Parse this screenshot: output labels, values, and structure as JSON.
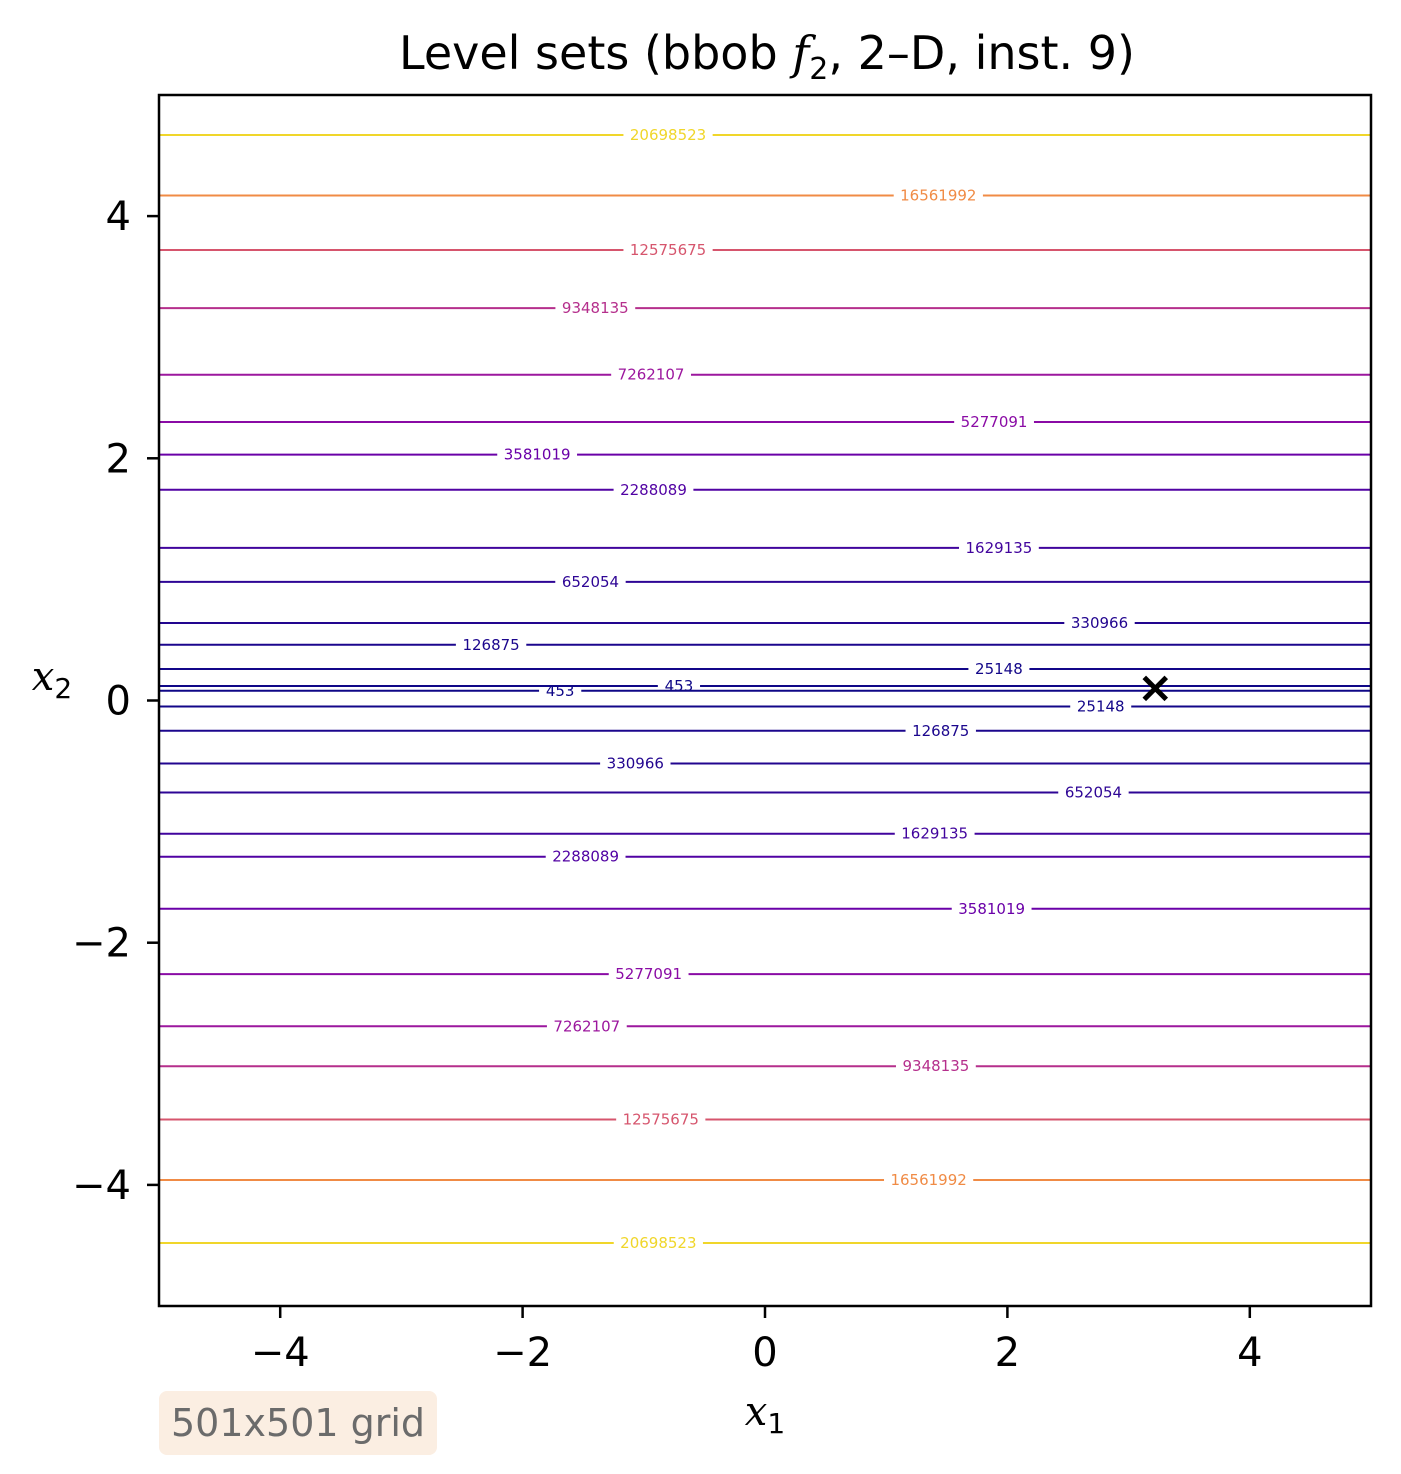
{
  "chart_data": {
    "type": "contour",
    "title": "Level sets (bbob f₂, 2–D, inst. 9)",
    "title_parts": {
      "pre": "Level sets (bbob ",
      "f": "f",
      "sub": "2",
      "post": ", 2–D, inst. 9)"
    },
    "xlabel": {
      "base": "x",
      "sub": "1"
    },
    "ylabel": {
      "base": "x",
      "sub": "2"
    },
    "xlim": [
      -5,
      5
    ],
    "ylim": [
      -5,
      5
    ],
    "xticks": [
      -4,
      -2,
      0,
      2,
      4
    ],
    "yticks": [
      -4,
      -2,
      0,
      2,
      4
    ],
    "xtick_labels": [
      "−4",
      "−2",
      "0",
      "2",
      "4"
    ],
    "ytick_labels": [
      "−4",
      "−2",
      "0",
      "2",
      "4"
    ],
    "grid": false,
    "colormap": "plasma",
    "levels": [
      {
        "value": "20698523",
        "y": 4.67,
        "label_x": -0.8,
        "color": "#f0d62a"
      },
      {
        "value": "16561992",
        "y": 4.17,
        "label_x": 1.43,
        "color": "#f08b45"
      },
      {
        "value": "12575675",
        "y": 3.72,
        "label_x": -0.8,
        "color": "#d6556d"
      },
      {
        "value": "9348135",
        "y": 3.24,
        "label_x": -1.4,
        "color": "#b52f8c"
      },
      {
        "value": "7262107",
        "y": 2.69,
        "label_x": -0.94,
        "color": "#9c179e"
      },
      {
        "value": "5277091",
        "y": 2.3,
        "label_x": 1.89,
        "color": "#8a0ba5"
      },
      {
        "value": "3581019",
        "y": 2.03,
        "label_x": -1.88,
        "color": "#6a00a8"
      },
      {
        "value": "2288089",
        "y": 1.74,
        "label_x": -0.92,
        "color": "#5102a3"
      },
      {
        "value": "1629135",
        "y": 1.26,
        "label_x": 1.93,
        "color": "#41049d"
      },
      {
        "value": "652054",
        "y": 0.98,
        "label_x": -1.44,
        "color": "#2e0595"
      },
      {
        "value": "330966",
        "y": 0.64,
        "label_x": 2.76,
        "color": "#22058f"
      },
      {
        "value": "126875",
        "y": 0.46,
        "label_x": -2.26,
        "color": "#1b068d"
      },
      {
        "value": "25148",
        "y": 0.26,
        "label_x": 1.93,
        "color": "#130789"
      },
      {
        "value": "453",
        "y": 0.12,
        "label_x": -0.71,
        "color": "#0f0787"
      },
      {
        "value": "453",
        "y": 0.08,
        "label_x": -1.69,
        "color": "#0f0787"
      },
      {
        "value": "25148",
        "y": -0.05,
        "label_x": 2.77,
        "color": "#130789"
      },
      {
        "value": "126875",
        "y": -0.25,
        "label_x": 1.45,
        "color": "#1b068d"
      },
      {
        "value": "330966",
        "y": -0.52,
        "label_x": -1.07,
        "color": "#22058f"
      },
      {
        "value": "652054",
        "y": -0.76,
        "label_x": 2.71,
        "color": "#2e0595"
      },
      {
        "value": "1629135",
        "y": -1.1,
        "label_x": 1.4,
        "color": "#41049d"
      },
      {
        "value": "2288089",
        "y": -1.29,
        "label_x": -1.48,
        "color": "#5102a3"
      },
      {
        "value": "3581019",
        "y": -1.72,
        "label_x": 1.87,
        "color": "#6a00a8"
      },
      {
        "value": "5277091",
        "y": -2.26,
        "label_x": -0.96,
        "color": "#8a0ba5"
      },
      {
        "value": "7262107",
        "y": -2.69,
        "label_x": -1.47,
        "color": "#9c179e"
      },
      {
        "value": "9348135",
        "y": -3.02,
        "label_x": 1.41,
        "color": "#b52f8c"
      },
      {
        "value": "12575675",
        "y": -3.46,
        "label_x": -0.86,
        "color": "#d6556d"
      },
      {
        "value": "16561992",
        "y": -3.96,
        "label_x": 1.35,
        "color": "#f08b45"
      },
      {
        "value": "20698523",
        "y": -4.48,
        "label_x": -0.88,
        "color": "#f0d62a"
      }
    ],
    "optimum_marker": {
      "x": 3.22,
      "y": 0.1,
      "symbol": "×"
    }
  },
  "annotation": {
    "text": "501x501 grid"
  }
}
